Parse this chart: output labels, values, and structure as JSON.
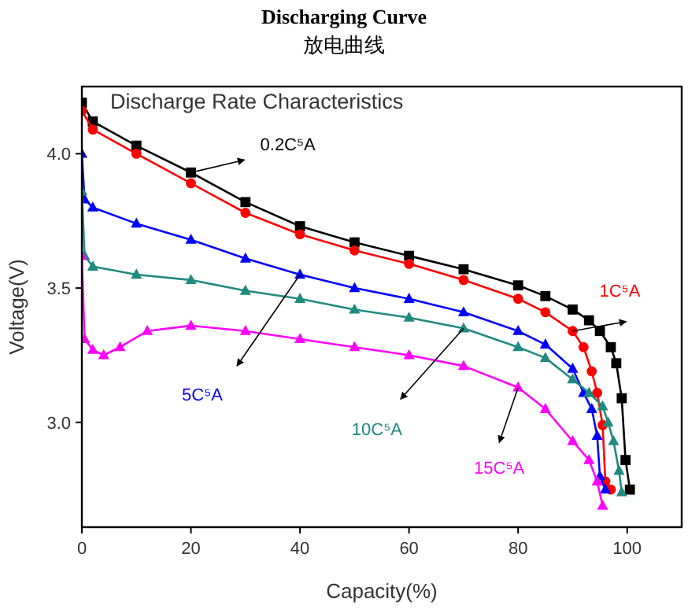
{
  "chart_data": {
    "type": "line",
    "title": "Discharging Curve",
    "subtitle": "放电曲线",
    "xlabel": "Capacity(%)",
    "ylabel": "Voltage(V)",
    "annotations": [
      "Discharge Rate Characteristics"
    ],
    "xlim": [
      0,
      110
    ],
    "xticks": [
      0,
      20,
      40,
      60,
      80,
      100
    ],
    "ylim": [
      2.61,
      4.25
    ],
    "yticks": [
      {
        "value": 3,
        "label": "3.0"
      },
      {
        "value": 3.5,
        "label": "3.5"
      },
      {
        "value": 4,
        "label": "4.0"
      }
    ],
    "grid": false,
    "line_style": "solid",
    "series": [
      {
        "name": "0.2C⁵A",
        "color": "#000000",
        "marker": "square",
        "x": [
          0,
          2,
          10,
          20,
          30,
          40,
          50,
          60,
          70,
          80,
          85,
          90,
          93,
          95,
          97,
          98,
          99,
          99.7,
          100.5
        ],
        "values": [
          4.19,
          4.12,
          4.03,
          3.93,
          3.82,
          3.73,
          3.67,
          3.62,
          3.57,
          3.51,
          3.47,
          3.42,
          3.38,
          3.34,
          3.28,
          3.22,
          3.09,
          2.86,
          2.75
        ]
      },
      {
        "name": "1C⁵A",
        "color": "#ff0000",
        "marker": "circle",
        "x": [
          0,
          2,
          10,
          20,
          30,
          40,
          50,
          60,
          70,
          80,
          85,
          90,
          92,
          93.5,
          94.5,
          95.5,
          96,
          97
        ],
        "values": [
          4.16,
          4.09,
          4.0,
          3.89,
          3.78,
          3.7,
          3.64,
          3.59,
          3.53,
          3.46,
          3.41,
          3.34,
          3.28,
          3.19,
          3.11,
          2.99,
          2.78,
          2.75
        ]
      },
      {
        "name": "5C⁵A",
        "color": "#0000ff",
        "marker": "triangle",
        "x": [
          0,
          0.5,
          2,
          10,
          20,
          30,
          40,
          50,
          60,
          70,
          80,
          85,
          90,
          92,
          93.5,
          94.5,
          95,
          96
        ],
        "values": [
          4.0,
          3.83,
          3.8,
          3.74,
          3.68,
          3.61,
          3.55,
          3.5,
          3.46,
          3.41,
          3.34,
          3.29,
          3.2,
          3.11,
          3.05,
          2.95,
          2.8,
          2.75
        ]
      },
      {
        "name": "10C⁵A",
        "color": "#1f8a80",
        "marker": "triangle",
        "x": [
          0,
          0.5,
          2,
          10,
          20,
          30,
          40,
          50,
          60,
          70,
          80,
          85,
          90,
          93,
          95.5,
          96.5,
          97.5,
          98.5,
          99
        ],
        "values": [
          3.86,
          3.62,
          3.58,
          3.55,
          3.53,
          3.49,
          3.46,
          3.42,
          3.39,
          3.35,
          3.28,
          3.24,
          3.16,
          3.11,
          3.06,
          3.0,
          2.93,
          2.82,
          2.74
        ]
      },
      {
        "name": "15C⁵A",
        "color": "#ff00ff",
        "marker": "triangle",
        "x": [
          0,
          0.5,
          2,
          4,
          7,
          12,
          20,
          30,
          40,
          50,
          60,
          70,
          80,
          85,
          90,
          93,
          94.5,
          95.5
        ],
        "values": [
          3.62,
          3.31,
          3.27,
          3.25,
          3.28,
          3.34,
          3.36,
          3.34,
          3.31,
          3.28,
          3.25,
          3.21,
          3.13,
          3.05,
          2.93,
          2.86,
          2.78,
          2.69
        ]
      }
    ]
  }
}
